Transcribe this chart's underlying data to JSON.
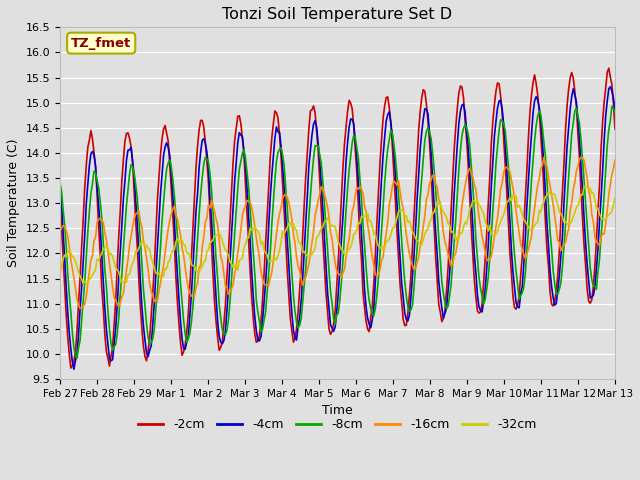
{
  "title": "Tonzi Soil Temperature Set D",
  "xlabel": "Time",
  "ylabel": "Soil Temperature (C)",
  "ylim": [
    9.5,
    16.5
  ],
  "annotation": "TZ_fmet",
  "bg_color": "#e0e0e0",
  "grid_color": "white",
  "series_names": [
    "-2cm",
    "-4cm",
    "-8cm",
    "-16cm",
    "-32cm"
  ],
  "series_colors": [
    "#cc0000",
    "#0000cc",
    "#00aa00",
    "#ff8800",
    "#cccc00"
  ],
  "series_lw": [
    1.2,
    1.2,
    1.2,
    1.2,
    1.2
  ],
  "xtick_labels": [
    "Feb 27",
    "Feb 28",
    "Feb 29",
    "Mar 1",
    "Mar 2",
    "Mar 3",
    "Mar 4",
    "Mar 5",
    "Mar 6",
    "Mar 7",
    "Mar 8",
    "Mar 9",
    "Mar 10",
    "Mar 11",
    "Mar 12",
    "Mar 13"
  ],
  "yticks": [
    9.5,
    10.0,
    10.5,
    11.0,
    11.5,
    12.0,
    12.5,
    13.0,
    13.5,
    14.0,
    14.5,
    15.0,
    15.5,
    16.0,
    16.5
  ],
  "n_days": 15,
  "pts_per_day": 24,
  "legend_colors": [
    "#cc0000",
    "#0000cc",
    "#00aa00",
    "#ff8800",
    "#cccc00"
  ],
  "legend_labels": [
    "-2cm",
    "-4cm",
    "-8cm",
    "-16cm",
    "-32cm"
  ]
}
